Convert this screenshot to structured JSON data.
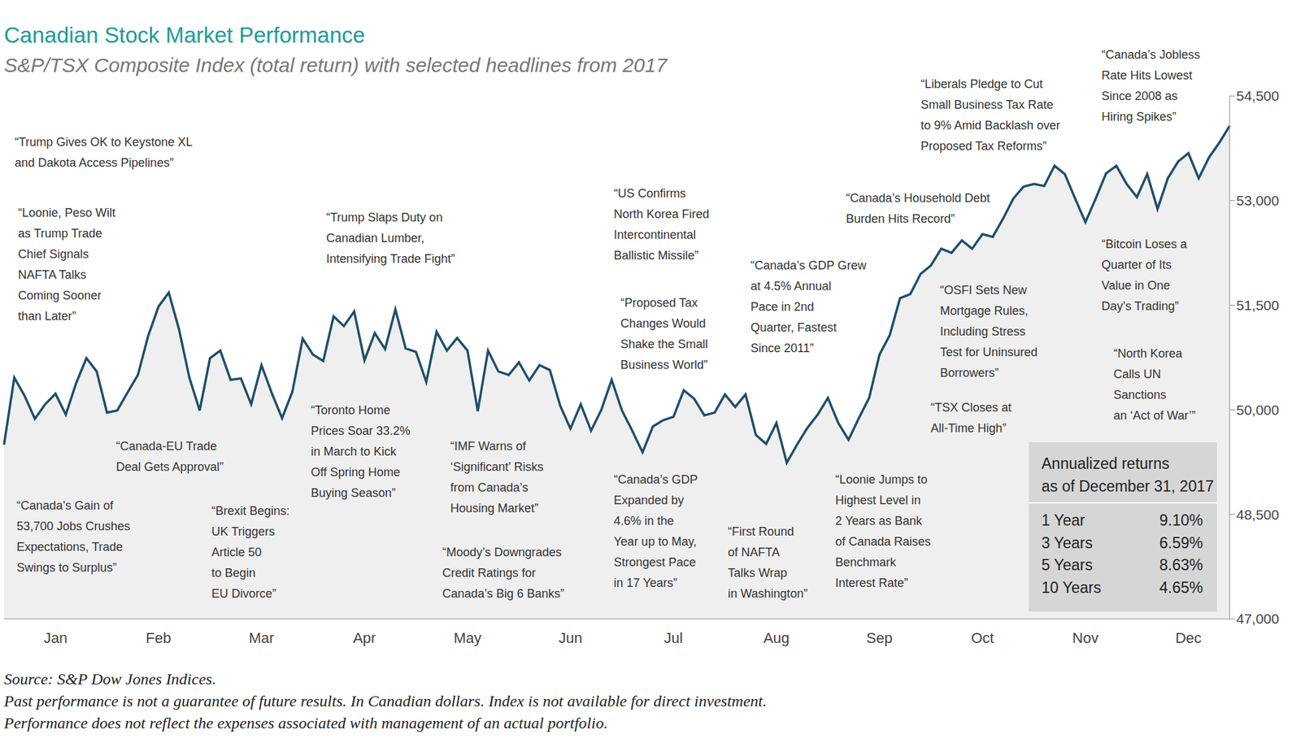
{
  "chart_data": {
    "type": "area",
    "title": "Canadian Stock Market Performance",
    "subtitle": "S&P/TSX Composite Index (total return) with selected headlines from 2017",
    "color": "#1d4e6b",
    "grid": false,
    "categories": [
      null,
      null,
      null,
      null,
      null,
      "Jan",
      null,
      null,
      null,
      null,
      null,
      null,
      null,
      null,
      null,
      "Feb",
      null,
      null,
      null,
      null,
      null,
      null,
      null,
      null,
      null,
      "Mar",
      null,
      null,
      null,
      null,
      null,
      null,
      null,
      null,
      null,
      "Apr",
      null,
      null,
      null,
      null,
      null,
      null,
      null,
      null,
      null,
      "May",
      null,
      null,
      null,
      null,
      null,
      null,
      null,
      null,
      null,
      "Jun",
      null,
      null,
      null,
      null,
      null,
      null,
      null,
      null,
      null,
      "Jul",
      null,
      null,
      null,
      null,
      null,
      null,
      null,
      null,
      null,
      "Aug",
      null,
      null,
      null,
      null,
      null,
      null,
      null,
      null,
      null,
      "Sep",
      null,
      null,
      null,
      null,
      null,
      null,
      null,
      null,
      null,
      "Oct",
      null,
      null,
      null,
      null,
      null,
      null,
      null,
      null,
      null,
      "Nov",
      null,
      null,
      null,
      null,
      null,
      null,
      null,
      null,
      null,
      "Dec",
      null,
      null,
      null,
      null
    ],
    "values": [
      49500,
      50460,
      50200,
      49870,
      50080,
      50230,
      49930,
      50380,
      50740,
      50550,
      49960,
      49990,
      50250,
      50500,
      51060,
      51480,
      51680,
      51150,
      50460,
      49990,
      50740,
      50850,
      50430,
      50450,
      50080,
      50640,
      50240,
      49880,
      50260,
      51020,
      50790,
      50700,
      51340,
      51200,
      51410,
      50710,
      51100,
      50870,
      51440,
      50880,
      50830,
      50400,
      51120,
      50850,
      51030,
      50850,
      49980,
      50850,
      50550,
      50500,
      50680,
      50420,
      50640,
      50570,
      50060,
      49730,
      50080,
      49700,
      50000,
      50430,
      49990,
      49700,
      49390,
      49760,
      49850,
      49900,
      50280,
      50160,
      49920,
      49960,
      50220,
      50040,
      50220,
      49640,
      49510,
      49810,
      49240,
      49500,
      49740,
      49930,
      50170,
      49810,
      49570,
      49880,
      50170,
      50790,
      51070,
      51600,
      51660,
      51950,
      52070,
      52310,
      52250,
      52430,
      52310,
      52520,
      52480,
      52740,
      53030,
      53200,
      53240,
      53210,
      53500,
      53380,
      53030,
      52690,
      53030,
      53390,
      53500,
      53240,
      53050,
      53380,
      52880,
      53320,
      53560,
      53680,
      53320,
      53620,
      53830,
      54070
    ],
    "ylim": [
      47000,
      54500
    ],
    "yticks": [
      {
        "value": 47000,
        "label": "47,000"
      },
      {
        "value": 48500,
        "label": "48,500"
      },
      {
        "value": 50000,
        "label": "50,000"
      },
      {
        "value": 51500,
        "label": "51,500"
      },
      {
        "value": 53000,
        "label": "53,000"
      },
      {
        "value": 54500,
        "label": "54,500"
      }
    ],
    "annotations": [
      "“Trump Gives OK to Keystone XL\nand Dakota Access Pipelines”",
      "“Loonie, Peso Wilt\nas Trump Trade\nChief Signals\nNAFTA Talks\nComing Sooner\nthan Later”",
      "“Canada-EU Trade\nDeal Gets Approval”",
      "“Canada’s Gain of\n53,700 Jobs Crushes\nExpectations, Trade\nSwings to Surplus”",
      "“Brexit Begins:\nUK Triggers\nArticle 50\nto Begin\nEU Divorce”",
      "“Trump Slaps Duty on\nCanadian Lumber,\nIntensifying Trade Fight”",
      "“Toronto Home\nPrices Soar 33.2%\nin March to Kick\nOff Spring Home\nBuying Season”",
      "“IMF Warns of\n‘Significant’ Risks\nfrom Canada’s\nHousing Market”",
      "“Moody’s Downgrades\nCredit Ratings for\nCanada’s Big 6 Banks”",
      "“US Confirms\nNorth Korea Fired\nIntercontinental\nBallistic Missile”",
      "“Proposed Tax\nChanges Would\nShake the Small\nBusiness World”",
      "“Canada’s GDP\nExpanded by\n4.6% in the\nYear up to May,\nStrongest Pace\nin 17 Years”",
      "“Canada’s GDP Grew\nat 4.5% Annual\nPace in 2nd\nQuarter, Fastest\nSince 2011”",
      "“First Round\nof NAFTA\nTalks Wrap\nin Washington”",
      "“Canada’s Household Debt\nBurden Hits Record”",
      "“Loonie Jumps to\nHighest Level in\n2 Years as Bank\nof Canada Raises\nBenchmark\nInterest Rate”",
      "“Liberals Pledge to Cut\nSmall Business Tax Rate\nto 9% Amid Backlash over\nProposed Tax Reforms”",
      "“OSFI Sets New\nMortgage Rules,\nIncluding Stress\nTest for Uninsured\nBorrowers”",
      "“TSX Closes at\nAll-Time High”",
      "“Canada’s Jobless\nRate Hits Lowest\nSince 2008 as\nHiring Spikes”",
      "“Bitcoin Loses a\nQuarter of Its\nValue in One\nDay’s Trading”",
      "“North Korea\nCalls UN\nSanctions\nan ‘Act of War’”"
    ],
    "summary": {
      "title": [
        "Annualized returns",
        "as of December 31, 2017"
      ],
      "rows": [
        [
          "1 Year",
          "9.10%"
        ],
        [
          "3 Years",
          "6.59%"
        ],
        [
          "5 Years",
          "8.63%"
        ],
        [
          "10 Years",
          "4.65%"
        ]
      ]
    },
    "notes": [
      "Source: S&P Dow Jones Indices.",
      "Past performance is not a guarantee of future results. In Canadian dollars. Index is not available for direct investment.",
      "Performance does not reflect the expenses associated with management of an actual portfolio."
    ]
  }
}
